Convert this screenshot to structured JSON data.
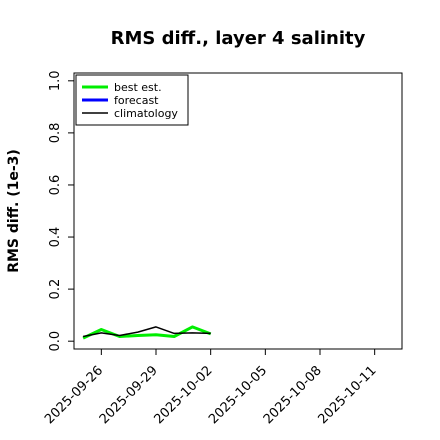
{
  "chart_data": {
    "type": "line",
    "title": "RMS diff., layer 4 salinity",
    "xlabel": "",
    "ylabel": "RMS diff. (1e-3)",
    "ylim": [
      -0.03,
      1.03
    ],
    "yticks": [
      "0.0",
      "0.2",
      "0.4",
      "0.6",
      "0.8",
      "1.0"
    ],
    "xlim": [
      "2025-09-24T12",
      "2025-10-12T12"
    ],
    "xticks": [
      "2025-09-26",
      "2025-09-29",
      "2025-10-02",
      "2025-10-05",
      "2025-10-08",
      "2025-10-11"
    ],
    "highlight_tick": "2025-10-02",
    "highlight_color": "#228B22",
    "grid": false,
    "legend_position": "top-left",
    "series": [
      {
        "name": "best est.",
        "color": "#00ee00",
        "width": 3,
        "x": [
          "2025-09-25",
          "2025-09-26",
          "2025-09-27",
          "2025-09-28",
          "2025-09-29",
          "2025-09-30",
          "2025-10-01",
          "2025-10-02"
        ],
        "y": [
          0.012,
          0.045,
          0.018,
          0.022,
          0.025,
          0.018,
          0.055,
          0.028
        ]
      },
      {
        "name": "forecast",
        "color": "#0000ff",
        "width": 3,
        "x": [],
        "y": []
      },
      {
        "name": "climatology",
        "color": "#000000",
        "width": 1.5,
        "x": [
          "2025-09-25",
          "2025-09-26",
          "2025-09-27",
          "2025-09-28",
          "2025-09-29",
          "2025-09-30",
          "2025-10-01",
          "2025-10-02"
        ],
        "y": [
          0.018,
          0.032,
          0.022,
          0.035,
          0.055,
          0.03,
          0.032,
          0.03
        ]
      }
    ]
  }
}
